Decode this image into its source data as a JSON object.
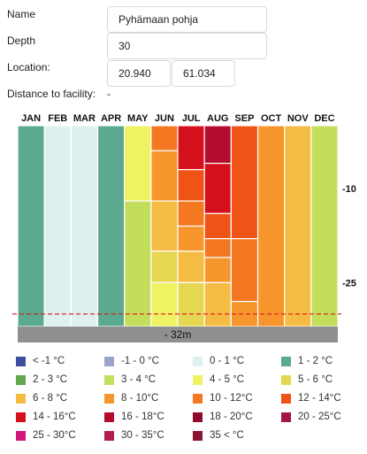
{
  "form": {
    "name_label": "Name",
    "name_value": "Pyhämaan pohja",
    "depth_label": "Depth",
    "depth_value": "30",
    "location_label": "Location:",
    "lon_value": "20.940",
    "lat_value": "61.034",
    "distance_label": "Distance to facility:",
    "distance_value": "-"
  },
  "chart_data": {
    "type": "heatmap",
    "x_categories": [
      "JAN",
      "FEB",
      "MAR",
      "APR",
      "MAY",
      "JUN",
      "JUL",
      "AUG",
      "SEP",
      "OCT",
      "NOV",
      "DEC"
    ],
    "depth_range": [
      0,
      32
    ],
    "y_tick_labels": [
      "-10",
      "-25"
    ],
    "y_tick_values": [
      10,
      25
    ],
    "bottom_label": "- 32m",
    "bottom_depth": 32,
    "threshold_depth": 30,
    "columns": [
      {
        "month": "JAN",
        "segments": [
          {
            "from": 0,
            "to": 32,
            "band": "1-2"
          }
        ]
      },
      {
        "month": "FEB",
        "segments": [
          {
            "from": 0,
            "to": 32,
            "band": "0-1"
          }
        ]
      },
      {
        "month": "MAR",
        "segments": [
          {
            "from": 0,
            "to": 32,
            "band": "0-1"
          }
        ]
      },
      {
        "month": "APR",
        "segments": [
          {
            "from": 0,
            "to": 32,
            "band": "1-2"
          }
        ]
      },
      {
        "month": "MAY",
        "segments": [
          {
            "from": 0,
            "to": 12,
            "band": "4-5"
          },
          {
            "from": 12,
            "to": 32,
            "band": "3-4"
          }
        ]
      },
      {
        "month": "JUN",
        "segments": [
          {
            "from": 0,
            "to": 4,
            "band": "10-12"
          },
          {
            "from": 4,
            "to": 12,
            "band": "8-10"
          },
          {
            "from": 12,
            "to": 20,
            "band": "6-8"
          },
          {
            "from": 20,
            "to": 25,
            "band": "5-6"
          },
          {
            "from": 25,
            "to": 32,
            "band": "4-5"
          }
        ]
      },
      {
        "month": "JUL",
        "segments": [
          {
            "from": 0,
            "to": 7,
            "band": "14-16"
          },
          {
            "from": 7,
            "to": 12,
            "band": "12-14"
          },
          {
            "from": 12,
            "to": 16,
            "band": "10-12"
          },
          {
            "from": 16,
            "to": 20,
            "band": "8-10"
          },
          {
            "from": 20,
            "to": 25,
            "band": "6-8"
          },
          {
            "from": 25,
            "to": 32,
            "band": "5-6"
          }
        ]
      },
      {
        "month": "AUG",
        "segments": [
          {
            "from": 0,
            "to": 6,
            "band": "16-18"
          },
          {
            "from": 6,
            "to": 14,
            "band": "14-16"
          },
          {
            "from": 14,
            "to": 18,
            "band": "12-14"
          },
          {
            "from": 18,
            "to": 21,
            "band": "10-12"
          },
          {
            "from": 21,
            "to": 25,
            "band": "8-10"
          },
          {
            "from": 25,
            "to": 32,
            "band": "6-8"
          }
        ]
      },
      {
        "month": "SEP",
        "segments": [
          {
            "from": 0,
            "to": 18,
            "band": "12-14"
          },
          {
            "from": 18,
            "to": 28,
            "band": "10-12"
          },
          {
            "from": 28,
            "to": 32,
            "band": "8-10"
          }
        ]
      },
      {
        "month": "OCT",
        "segments": [
          {
            "from": 0,
            "to": 32,
            "band": "8-10"
          }
        ]
      },
      {
        "month": "NOV",
        "segments": [
          {
            "from": 0,
            "to": 32,
            "band": "6-8"
          }
        ]
      },
      {
        "month": "DEC",
        "segments": [
          {
            "from": 0,
            "to": 32,
            "band": "3-4"
          }
        ]
      }
    ]
  },
  "legend": [
    {
      "band": "<-1",
      "label": "< -1 °C",
      "color": "#3f4f9f"
    },
    {
      "band": "-1-0",
      "label": "-1 - 0 °C",
      "color": "#9ba5cc"
    },
    {
      "band": "0-1",
      "label": "0 - 1 °C",
      "color": "#dff0f0"
    },
    {
      "band": "1-2",
      "label": "1 - 2 °C",
      "color": "#5ba98e"
    },
    {
      "band": "2-3",
      "label": "2 - 3 °C",
      "color": "#63a84c"
    },
    {
      "band": "3-4",
      "label": "3 - 4 °C",
      "color": "#c3de5c"
    },
    {
      "band": "4-5",
      "label": "4 - 5 °C",
      "color": "#eef263"
    },
    {
      "band": "5-6",
      "label": "5 - 6 °C",
      "color": "#e5d751"
    },
    {
      "band": "6-8",
      "label": "6 - 8 °C",
      "color": "#f5bc43"
    },
    {
      "band": "8-10",
      "label": "8 - 10°C",
      "color": "#f7962d"
    },
    {
      "band": "10-12",
      "label": "10 - 12°C",
      "color": "#f47821"
    },
    {
      "band": "12-14",
      "label": "12 - 14°C",
      "color": "#ef5315"
    },
    {
      "band": "14-16",
      "label": "14 - 16°C",
      "color": "#d4101c"
    },
    {
      "band": "16-18",
      "label": "16 - 18°C",
      "color": "#b40c2e"
    },
    {
      "band": "18-20",
      "label": "18 - 20°C",
      "color": "#8f0b2e"
    },
    {
      "band": "20-25",
      "label": "20 - 25°C",
      "color": "#a3163f"
    },
    {
      "band": "25-30",
      "label": "25 - 30°C",
      "color": "#d11579"
    },
    {
      "band": "30-35",
      "label": "30 - 35°C",
      "color": "#b31c50"
    },
    {
      "band": "35<",
      "label": "35 <    °C",
      "color": "#8b1433"
    }
  ],
  "colors": {
    "bottom_bar": "#8f8f8f",
    "threshold_line": "#e0161f",
    "column_stroke": "#ffffff"
  }
}
